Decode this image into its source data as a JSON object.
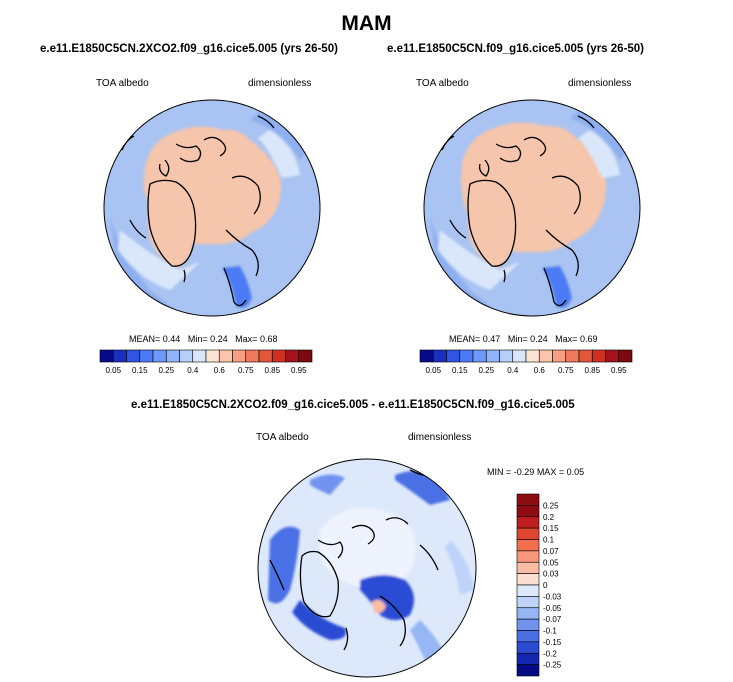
{
  "title": "MAM",
  "panels": [
    {
      "case": "e.e11.E1850C5CN.2XCO2.f09_g16.cice5.005 (yrs 26-50)",
      "variable": "TOA albedo",
      "units": "dimensionless",
      "stats": {
        "mean_label": "MEAN=",
        "mean": "0.44",
        "min_label": "Min=",
        "min": "0.24",
        "max_label": "Max=",
        "max": "0.68"
      }
    },
    {
      "case": "e.e11.E1850C5CN.f09_g16.cice5.005 (yrs 26-50)",
      "variable": "TOA albedo",
      "units": "dimensionless",
      "stats": {
        "mean_label": "MEAN=",
        "mean": "0.47",
        "min_label": "Min=",
        "min": "0.24",
        "max_label": "Max=",
        "max": "0.69"
      }
    },
    {
      "case": "e.e11.E1850C5CN.2XCO2.f09_g16.cice5.005 - e.e11.E1850C5CN.f09_g16.cice5.005",
      "variable": "TOA albedo",
      "units": "dimensionless",
      "stats": {
        "min_label": "MIN =",
        "min": "-0.29",
        "max_label": "MAX =",
        "max": "0.05"
      }
    }
  ],
  "chart_data": [
    {
      "type": "heatmap",
      "projection": "north-polar-stereographic",
      "title": "e.e11.E1850C5CN.2XCO2.f09_g16.cice5.005 (yrs 26-50)",
      "variable": "TOA albedo",
      "units": "dimensionless",
      "mean": 0.44,
      "min": 0.24,
      "max": 0.68,
      "colorbar_levels": [
        0.05,
        0.1,
        0.15,
        0.2,
        0.25,
        0.3,
        0.35,
        0.4,
        0.5,
        0.6,
        0.65,
        0.7,
        0.75,
        0.8,
        0.85,
        0.9,
        0.95
      ],
      "colorbar_tick_labels": [
        "0.05",
        "0.15",
        "0.25",
        "0.4",
        "0.6",
        "0.75",
        "0.85",
        "0.95"
      ],
      "regions": {
        "central_arctic_and_greenland": 0.6,
        "subpolar_ocean": 0.45,
        "land_margins": 0.35,
        "scandinavia": 0.25
      }
    },
    {
      "type": "heatmap",
      "projection": "north-polar-stereographic",
      "title": "e.e11.E1850C5CN.f09_g16.cice5.005 (yrs 26-50)",
      "variable": "TOA albedo",
      "units": "dimensionless",
      "mean": 0.47,
      "min": 0.24,
      "max": 0.69,
      "colorbar_levels": [
        0.05,
        0.1,
        0.15,
        0.2,
        0.25,
        0.3,
        0.35,
        0.4,
        0.5,
        0.6,
        0.65,
        0.7,
        0.75,
        0.8,
        0.85,
        0.9,
        0.95
      ],
      "colorbar_tick_labels": [
        "0.05",
        "0.15",
        "0.25",
        "0.4",
        "0.6",
        "0.75",
        "0.85",
        "0.95"
      ],
      "regions": {
        "central_arctic_and_greenland": 0.6,
        "subpolar_ocean": 0.45,
        "land_margins": 0.35,
        "scandinavia": 0.25
      }
    },
    {
      "type": "heatmap",
      "projection": "north-polar-stereographic",
      "title": "e.e11.E1850C5CN.2XCO2.f09_g16.cice5.005 - e.e11.E1850C5CN.f09_g16.cice5.005",
      "variable": "TOA albedo",
      "units": "dimensionless",
      "min": -0.29,
      "max": 0.05,
      "colorbar_levels": [
        0.25,
        0.2,
        0.15,
        0.1,
        0.07,
        0.05,
        0.03,
        0,
        -0.03,
        -0.05,
        -0.07,
        -0.1,
        -0.15,
        -0.2,
        -0.25
      ],
      "colorbar_tick_labels": [
        "0.25",
        "0.2",
        "0.15",
        "0.1",
        "0.07",
        "0.05",
        "0.03",
        "0",
        "-0.03",
        "-0.05",
        "-0.07",
        "-0.1",
        "-0.15",
        "-0.2",
        "-0.25"
      ],
      "regions": {
        "central_arctic": -0.01,
        "sea_ice_margins": -0.15,
        "barents_kara": -0.2,
        "open_ocean": -0.02
      }
    }
  ],
  "colors": {
    "seq_palette": [
      "#08088a",
      "#1b2fbf",
      "#2f56e2",
      "#4b7bf5",
      "#6d99fb",
      "#90b3fc",
      "#b6cffb",
      "#dae7fa",
      "#fce3d3",
      "#fbc4ab",
      "#f79f82",
      "#f07a5c",
      "#e55539",
      "#cf3023",
      "#a6141a",
      "#7a0a10"
    ],
    "diff_palette": [
      "#8e0c12",
      "#c01e1e",
      "#e0452f",
      "#f26e4c",
      "#f7977b",
      "#f9bca5",
      "#fbe0d2",
      "#dde9fb",
      "#bdd3fa",
      "#97b6f6",
      "#6f93ef",
      "#4a6fe4",
      "#2c4bd3",
      "#1427b1",
      "#050a86"
    ],
    "ocean": "#a9c4f2",
    "ice": "#f5c5ac",
    "land_edge": "#000000"
  }
}
